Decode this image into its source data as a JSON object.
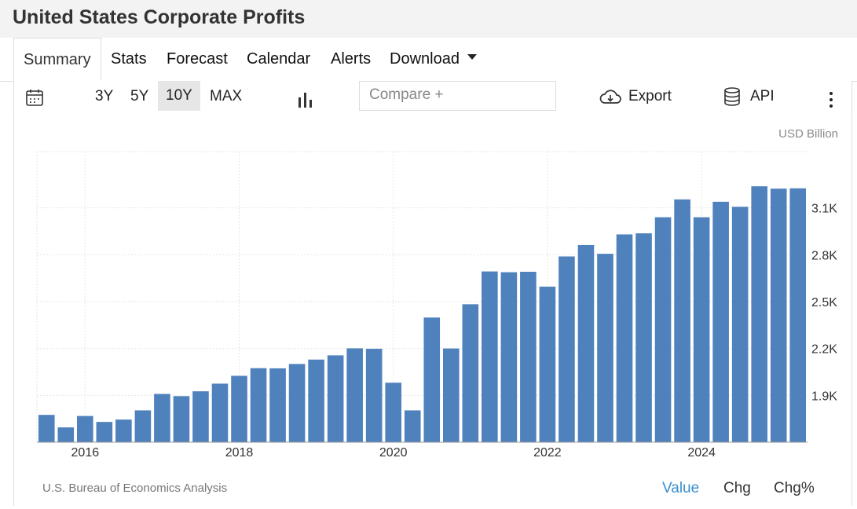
{
  "header": {
    "title": "United States Corporate Profits"
  },
  "tabs": [
    {
      "label": "Summary",
      "active": true
    },
    {
      "label": "Stats"
    },
    {
      "label": "Forecast"
    },
    {
      "label": "Calendar"
    },
    {
      "label": "Alerts"
    },
    {
      "label": "Download"
    }
  ],
  "toolbar": {
    "ranges": [
      "3Y",
      "5Y",
      "10Y",
      "MAX"
    ],
    "active_range": "10Y",
    "compare_placeholder": "Compare +",
    "export_label": "Export",
    "api_label": "API",
    "icons": [
      "calendar-icon",
      "bar-chart-icon",
      "cloud-download-icon",
      "database-icon",
      "more-vertical-icon"
    ]
  },
  "footer": {
    "source": "U.S. Bureau of Economics Analysis",
    "modes": [
      "Value",
      "Chg",
      "Chg%"
    ],
    "active_mode": "Value"
  },
  "colors": {
    "bar": "#4f81bd",
    "active_mode": "#3a8ed0",
    "grid": "#e6e6e6"
  },
  "chart_data": {
    "type": "bar",
    "unit_label": "USD Billion",
    "categories": [
      "2015-Q3",
      "2015-Q4",
      "2016-Q1",
      "2016-Q2",
      "2016-Q3",
      "2016-Q4",
      "2017-Q1",
      "2017-Q2",
      "2017-Q3",
      "2017-Q4",
      "2018-Q1",
      "2018-Q2",
      "2018-Q3",
      "2018-Q4",
      "2019-Q1",
      "2019-Q2",
      "2019-Q3",
      "2019-Q4",
      "2020-Q1",
      "2020-Q2",
      "2020-Q3",
      "2020-Q4",
      "2021-Q1",
      "2021-Q2",
      "2021-Q3",
      "2021-Q4",
      "2022-Q1",
      "2022-Q2",
      "2022-Q3",
      "2022-Q4",
      "2023-Q1",
      "2023-Q2",
      "2023-Q3",
      "2023-Q4",
      "2024-Q1",
      "2024-Q2",
      "2024-Q3",
      "2024-Q4",
      "2025-Q1",
      "2025-Q2"
    ],
    "values": [
      1775,
      1695,
      1768,
      1730,
      1745,
      1804,
      1909,
      1895,
      1926,
      1975,
      2025,
      2074,
      2073,
      2101,
      2129,
      2156,
      2201,
      2198,
      1981,
      1804,
      2398,
      2200,
      2483,
      2693,
      2688,
      2691,
      2596,
      2789,
      2862,
      2806,
      2930,
      2937,
      3040,
      3154,
      3040,
      3139,
      3107,
      3238,
      3223,
      3225
    ],
    "x_tick_labels": [
      "2016",
      "2018",
      "2020",
      "2022",
      "2024"
    ],
    "y_ticks": [
      1900,
      2200,
      2500,
      2800,
      3100
    ],
    "y_tick_labels": [
      "1.9K",
      "2.2K",
      "2.5K",
      "2.8K",
      "3.1K"
    ],
    "ylim": [
      1600,
      3460
    ],
    "grid": true,
    "y_axis_side": "right"
  }
}
